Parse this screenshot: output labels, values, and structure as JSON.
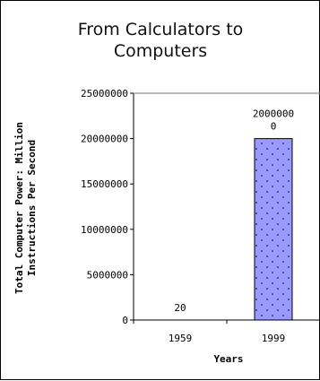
{
  "chart_data": {
    "type": "bar",
    "title_lines": [
      "From Calculators to",
      "Computers"
    ],
    "xlabel": "Years",
    "ylabel_lines": [
      "Total Computer Power: Million",
      "Instructions Per Second"
    ],
    "categories": [
      "1959",
      "1999"
    ],
    "values": [
      20,
      20000000
    ],
    "data_labels": [
      [
        "20"
      ],
      [
        "2000000",
        "0"
      ]
    ],
    "ylim": [
      0,
      25000000
    ],
    "yticks": [
      0,
      5000000,
      10000000,
      15000000,
      20000000,
      25000000
    ],
    "ytick_labels": [
      "0",
      "5000000",
      "10000000",
      "15000000",
      "20000000",
      "25000000"
    ],
    "grid": false,
    "bar_color": "#9999ff",
    "pattern": "dots"
  }
}
